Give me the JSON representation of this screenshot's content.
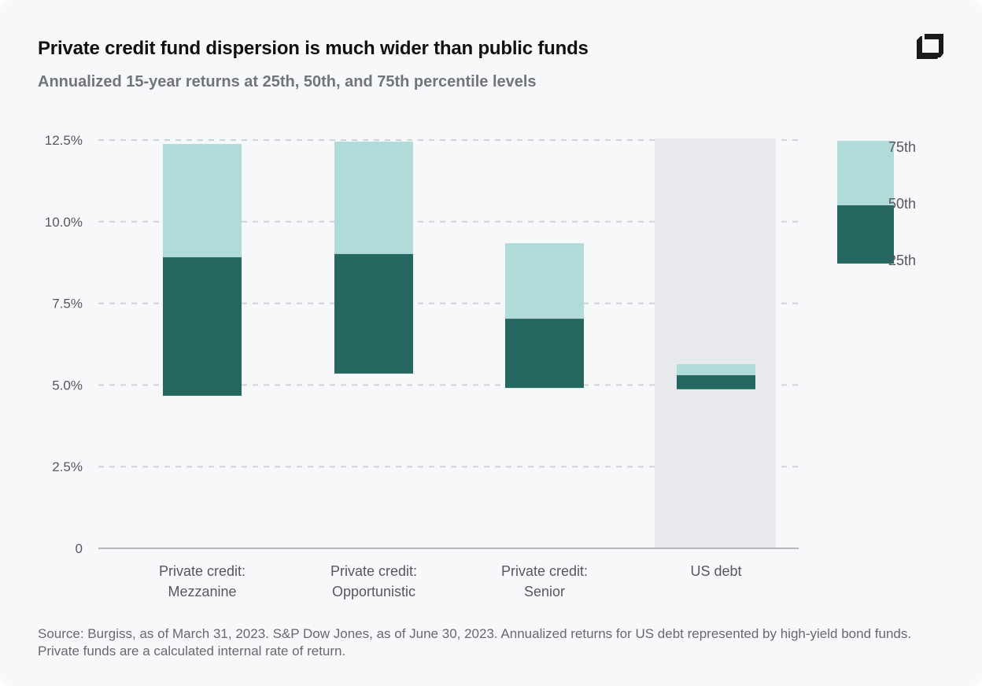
{
  "title": "Private credit fund dispersion is much wider than public funds",
  "subtitle": "Annualized 15-year returns at 25th, 50th, and 75th percentile levels",
  "source": "Source: Burgiss, as of March 31, 2023. S&P Dow Jones, as of June 30, 2023. Annualized returns for US debt represented by high-yield bond funds. Private funds are a calculated internal rate of return.",
  "logo_icon": "corner-square-logo",
  "colors": {
    "lower": "#256660",
    "upper": "#b0dbd8",
    "highlight_band": "#e7e9ed",
    "grid": "#d0d3d6",
    "axis": "#b5b8bb"
  },
  "chart_data": {
    "type": "bar",
    "subtype": "floating-stacked-range",
    "categories": [
      [
        "Private credit:",
        "Mezzanine"
      ],
      [
        "Private credit:",
        "Opportunistic"
      ],
      [
        "Private credit:",
        "Senior"
      ],
      [
        "US debt"
      ]
    ],
    "p25": [
      4.67,
      5.35,
      4.91,
      4.87
    ],
    "p50": [
      8.91,
      9.01,
      7.03,
      5.3
    ],
    "p75": [
      12.38,
      12.45,
      9.34,
      5.64
    ],
    "highlighted_category": "US debt",
    "ylim": [
      0,
      12.5
    ],
    "yticks": [
      0,
      2.5,
      5.0,
      7.5,
      10.0,
      12.5
    ],
    "ytick_labels": [
      "0",
      "2.5%",
      "5.0%",
      "7.5%",
      "10.0%",
      "12.5%"
    ],
    "grid": "horizontal-dashed",
    "legend": {
      "placement": "right",
      "labels": [
        "75th",
        "50th",
        "25th"
      ]
    }
  }
}
